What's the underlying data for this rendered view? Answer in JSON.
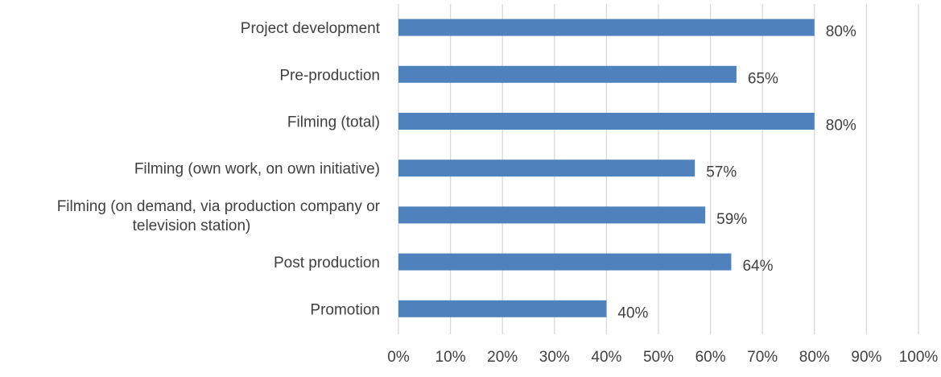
{
  "chart_data": {
    "type": "bar",
    "orientation": "horizontal",
    "title": "",
    "xlabel": "",
    "ylabel": "",
    "categories": [
      "Project development",
      "Pre-production",
      "Filming (total)",
      "Filming (own work, on own initiative)",
      "Filming (on demand, via production company or television station)",
      "Post production",
      "Promotion"
    ],
    "category_lines": [
      [
        "Project development"
      ],
      [
        "Pre-production"
      ],
      [
        "Filming (total)"
      ],
      [
        "Filming (own work, on own initiative)"
      ],
      [
        "Filming (on demand, via production company or",
        "television station)"
      ],
      [
        "Post production"
      ],
      [
        "Promotion"
      ]
    ],
    "values": [
      80,
      65,
      80,
      57,
      59,
      64,
      40
    ],
    "value_labels": [
      "80%",
      "65%",
      "80%",
      "57%",
      "59%",
      "64%",
      "40%"
    ],
    "xlim": [
      0,
      100
    ],
    "xticks": [
      0,
      10,
      20,
      30,
      40,
      50,
      60,
      70,
      80,
      90,
      100
    ],
    "xtick_labels": [
      "0%",
      "10%",
      "20%",
      "30%",
      "40%",
      "50%",
      "60%",
      "70%",
      "80%",
      "90%",
      "100%"
    ],
    "grid": true,
    "legend": "none",
    "colors": {
      "bar": "#4f81bd",
      "grid": "#d9d9d9",
      "text": "#404040"
    }
  }
}
